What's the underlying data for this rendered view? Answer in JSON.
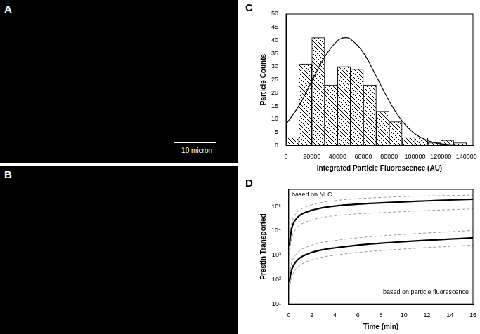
{
  "panels": [
    {
      "label": "A",
      "scale_bar": "10 micron"
    },
    {
      "label": "B"
    }
  ],
  "chart_data": [
    {
      "type": "histogram",
      "title": "C",
      "x_label": "Integrated Particle Fluorescence (AU)",
      "y_label": "Particle Counts",
      "bins": [
        0,
        10000,
        20000,
        30000,
        40000,
        50000,
        60000,
        70000,
        80000,
        90000,
        100000,
        110000,
        120000,
        130000,
        140000
      ],
      "values": [
        3,
        31,
        41,
        23,
        30,
        29,
        23,
        13,
        9,
        3,
        3,
        1,
        2,
        1
      ],
      "color": "#000000",
      "series": [
        {
          "type": "line",
          "color": "#000000",
          "x": [
            0,
            10000,
            20000,
            30000,
            40000,
            46000,
            50000,
            60000,
            70000,
            80000,
            90000,
            100000,
            110000,
            120000,
            130000,
            140000
          ],
          "values": [
            8.0,
            15.1,
            24.4,
            33.7,
            39.9,
            41.0,
            40.5,
            35.3,
            26.3,
            16.9,
            9.3,
            4.4,
            1.8,
            0.6,
            0.2,
            0.0
          ]
        }
      ],
      "xlim": [
        0,
        145000
      ],
      "xticks": [
        0,
        20000,
        40000,
        60000,
        80000,
        100000,
        120000,
        140000
      ],
      "ylim": [
        0,
        50
      ],
      "yticks": [
        0,
        5,
        10,
        15,
        20,
        25,
        30,
        35,
        40,
        45,
        50
      ],
      "grid": false
    },
    {
      "type": "line",
      "title": "D",
      "x_label": "Time (min)",
      "y_label": "Prestin Transported",
      "x": [
        0.05,
        0.25,
        0.5,
        1,
        2,
        3,
        4,
        6,
        8,
        10,
        12,
        14,
        16
      ],
      "series": [
        {
          "name": "based on NLC",
          "color": "#000000",
          "line_style": "solid",
          "values": [
            2500,
            12000,
            25000,
            45000,
            70000,
            90000,
            105000,
            125000,
            140000,
            155000,
            170000,
            185000,
            200000
          ]
        },
        {
          "color": "#999999",
          "line_style": "dashed",
          "values": [
            4200,
            20000,
            42000,
            75000,
            118000,
            150000,
            175000,
            210000,
            235000,
            255000,
            270000,
            280000,
            290000
          ]
        },
        {
          "color": "#999999",
          "line_style": "dashed",
          "values": [
            1000,
            4800,
            10000,
            18000,
            28000,
            36000,
            42000,
            50000,
            56000,
            62000,
            68000,
            74000,
            80000
          ]
        },
        {
          "name": "based on particle fluorescence",
          "color": "#000000",
          "line_style": "solid",
          "values": [
            80,
            250,
            450,
            800,
            1300,
            1700,
            2000,
            2600,
            3100,
            3600,
            4100,
            4600,
            5200
          ]
        },
        {
          "color": "#999999",
          "line_style": "dashed",
          "values": [
            160,
            500,
            900,
            1600,
            2600,
            3400,
            4000,
            5200,
            6200,
            7200,
            8200,
            9200,
            10400
          ]
        },
        {
          "color": "#999999",
          "line_style": "dashed",
          "values": [
            40,
            125,
            225,
            400,
            650,
            850,
            1000,
            1300,
            1550,
            1800,
            2050,
            2300,
            2600
          ]
        }
      ],
      "xlim": [
        0,
        16
      ],
      "xticks": [
        0,
        2,
        4,
        6,
        8,
        10,
        12,
        14,
        16
      ],
      "ylim": [
        10,
        500000
      ],
      "yticks": [
        {
          "value": 10,
          "label": "10¹"
        },
        {
          "value": 100,
          "label": "10²"
        },
        {
          "value": 1000,
          "label": "10³"
        },
        {
          "value": 10000,
          "label": "10⁴"
        },
        {
          "value": 100000,
          "label": "10⁵"
        }
      ],
      "log": "y",
      "grid": false
    }
  ]
}
